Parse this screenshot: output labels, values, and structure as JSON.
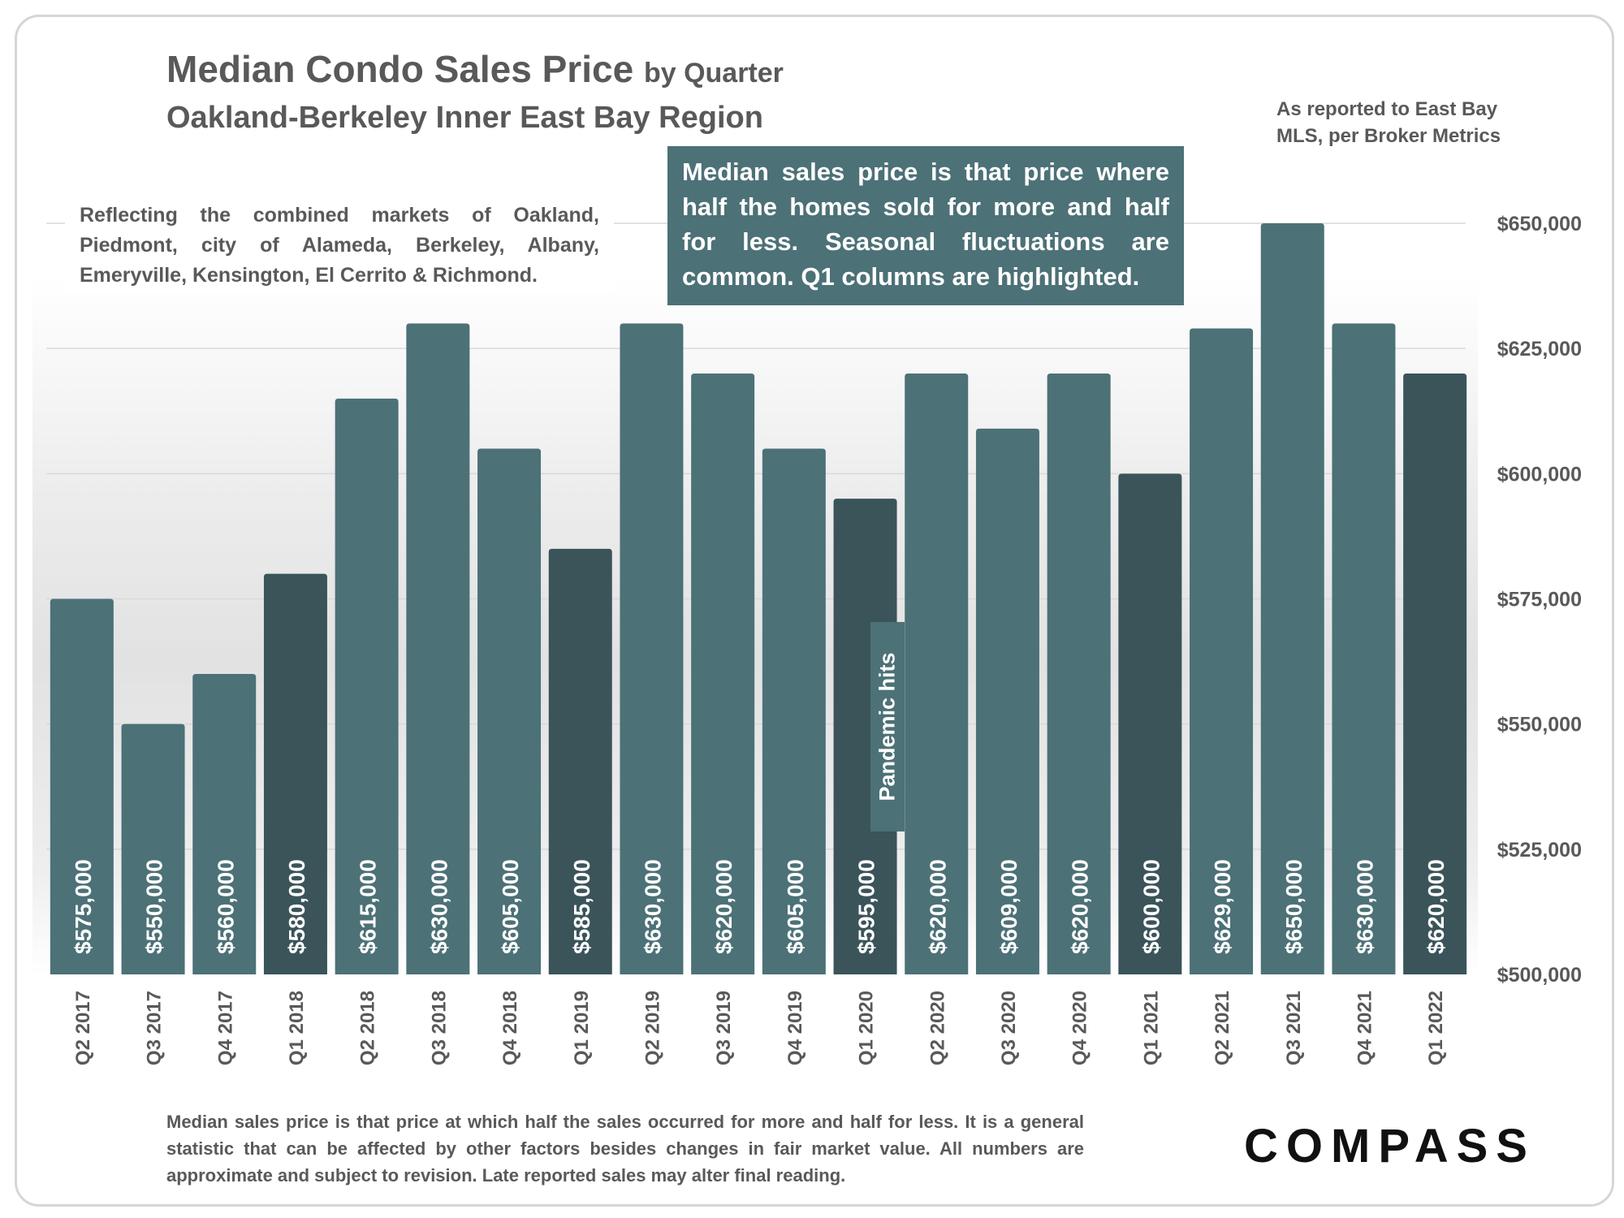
{
  "header": {
    "title_main": "Median Condo Sales Price",
    "title_suffix": "by Quarter",
    "subtitle": "Oakland-Berkeley Inner East Bay Region",
    "source_note": "As reported to East Bay MLS, per Broker Metrics"
  },
  "annotations": {
    "region_note": "Reflecting the combined markets of Oakland, Piedmont, city of Alameda, Berkeley, Albany, Emeryville, Kensington, El Cerrito & Richmond.",
    "callout": "Median sales price is that price where half the homes sold for more and half for less. Seasonal fluctuations are common. Q1 columns are highlighted.",
    "pandemic": "Pandemic hits"
  },
  "footer": {
    "footnote": "Median sales price is that price at which half the sales occurred for more and half for less. It is a general statistic that can be affected by other factors besides changes in fair market value. All numbers are approximate and subject to revision. Late reported sales may alter final reading.",
    "logo": "COMPASS"
  },
  "colors": {
    "bar": "#4c7177",
    "bar_highlight": "#3a545a",
    "gridline": "#d9d9d9",
    "axis_text": "#595959"
  },
  "chart_data": {
    "type": "bar",
    "title": "Median Condo Sales Price by Quarter",
    "categories": [
      "Q2 2017",
      "Q3 2017",
      "Q4 2017",
      "Q1 2018",
      "Q2 2018",
      "Q3 2018",
      "Q4 2018",
      "Q1 2019",
      "Q2 2019",
      "Q3 2019",
      "Q4 2019",
      "Q1 2020",
      "Q2 2020",
      "Q3 2020",
      "Q4 2020",
      "Q1 2021",
      "Q2 2021",
      "Q3 2021",
      "Q4 2021",
      "Q1 2022"
    ],
    "values": [
      575000,
      550000,
      560000,
      580000,
      615000,
      630000,
      605000,
      585000,
      630000,
      620000,
      605000,
      595000,
      620000,
      609000,
      620000,
      600000,
      629000,
      650000,
      630000,
      620000
    ],
    "value_labels": [
      "$575,000",
      "$550,000",
      "$560,000",
      "$580,000",
      "$615,000",
      "$630,000",
      "$605,000",
      "$585,000",
      "$630,000",
      "$620,000",
      "$605,000",
      "$595,000",
      "$620,000",
      "$609,000",
      "$620,000",
      "$600,000",
      "$629,000",
      "$650,000",
      "$630,000",
      "$620,000"
    ],
    "highlighted": [
      false,
      false,
      false,
      true,
      false,
      false,
      false,
      true,
      false,
      false,
      false,
      true,
      false,
      false,
      false,
      true,
      false,
      false,
      false,
      true
    ],
    "ylim": [
      500000,
      650000
    ],
    "yticks": [
      500000,
      525000,
      550000,
      575000,
      600000,
      625000,
      650000
    ],
    "ytick_labels": [
      "$500,000",
      "$525,000",
      "$550,000",
      "$575,000",
      "$600,000",
      "$625,000",
      "$650,000"
    ],
    "y_axis_position": "right",
    "grid": true,
    "legend": "none"
  }
}
